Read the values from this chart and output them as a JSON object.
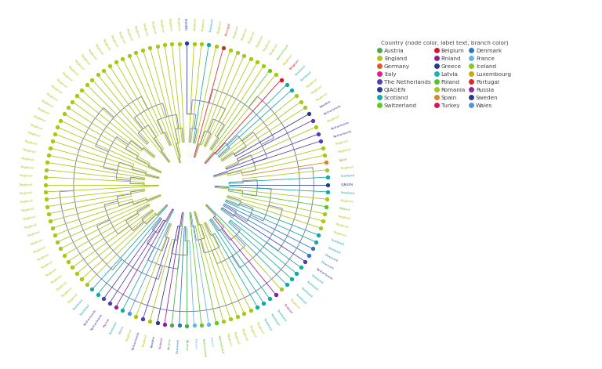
{
  "background_color": "#ffffff",
  "legend_title": "Country (node color, label text, branch color)",
  "countries": [
    {
      "name": "Austria",
      "color": "#4aaa50"
    },
    {
      "name": "England",
      "color": "#aac814"
    },
    {
      "name": "Germany",
      "color": "#e05a1e"
    },
    {
      "name": "Italy",
      "color": "#e01e8c"
    },
    {
      "name": "The Netherlands",
      "color": "#5040b0"
    },
    {
      "name": "QIAGEN",
      "color": "#283c96"
    },
    {
      "name": "Scotland",
      "color": "#14aaa0"
    },
    {
      "name": "Switzerland",
      "color": "#64c820"
    },
    {
      "name": "Belgium",
      "color": "#dc1428"
    },
    {
      "name": "Finland",
      "color": "#8c1ea0"
    },
    {
      "name": "Greece",
      "color": "#283c8c"
    },
    {
      "name": "Latvia",
      "color": "#14b4c8"
    },
    {
      "name": "Poland",
      "color": "#50c828"
    },
    {
      "name": "Romania",
      "color": "#a0c828"
    },
    {
      "name": "Spain",
      "color": "#e08228"
    },
    {
      "name": "Turkey",
      "color": "#dc1450"
    },
    {
      "name": "Denmark",
      "color": "#2878c8"
    },
    {
      "name": "France",
      "color": "#64b4e6"
    },
    {
      "name": "Iceland",
      "color": "#82c828"
    },
    {
      "name": "Luxembourg",
      "color": "#c8aa00"
    },
    {
      "name": "Portugal",
      "color": "#dc2828"
    },
    {
      "name": "Russia",
      "color": "#8c28a0"
    },
    {
      "name": "Sweden",
      "color": "#283c82"
    },
    {
      "name": "Wales",
      "color": "#5096dc"
    }
  ],
  "color_map": {
    "Austria": "#4aaa50",
    "England": "#aac814",
    "Germany": "#e05a1e",
    "Italy": "#e01e8c",
    "The Netherlands": "#5040b0",
    "QIAGEN": "#283c96",
    "Scotland": "#14aaa0",
    "Switzerland": "#64c820",
    "Belgium": "#dc1428",
    "Finland": "#8c1ea0",
    "Greece": "#283c8c",
    "Latvia": "#14b4c8",
    "Poland": "#50c828",
    "Romania": "#a0c828",
    "Spain": "#e08228",
    "Turkey": "#dc1450",
    "Denmark": "#2878c8",
    "France": "#64b4e6",
    "Iceland": "#82c828",
    "Luxembourg": "#c8aa00",
    "Portugal": "#dc2828",
    "Russia": "#8c28a0",
    "Sweden": "#283c82",
    "Wales": "#5096dc"
  },
  "tree_color": "#7878a8",
  "leaf_labels": [
    "QIAGEN",
    "England",
    "England",
    "Scotland",
    "England",
    "Portugal",
    "England",
    "England",
    "England",
    "England",
    "England",
    "England",
    "Switzerland",
    "England",
    "Belgium",
    "Scotland",
    "Scotland",
    "England",
    "England",
    "England",
    "Sweden",
    "Netherlands",
    "England",
    "Netherlands",
    "Netherlands",
    "England",
    "England",
    "Spain",
    "England",
    "Scotland",
    "QIAGEN",
    "Scotland",
    "England",
    "Poland",
    "England",
    "England",
    "England",
    "Scotland",
    "Scotland",
    "Denmark",
    "Denmark",
    "Netherlands",
    "Scotland",
    "Scotland",
    "Scotland",
    "Scotland",
    "England",
    "Finland",
    "Scotland",
    "Scotland",
    "Scotland",
    "England",
    "England",
    "England",
    "England",
    "England",
    "Switzerland",
    "France",
    "Switzerland",
    "France",
    "Austria",
    "Denmark",
    "Austria",
    "Finland",
    "Sweden",
    "England",
    "Netherlands",
    "England",
    "Wales",
    "Scotland",
    "Russia",
    "Netherlands",
    "Netherlands",
    "Scotland",
    "Scotland",
    "England",
    "England",
    "England",
    "England",
    "England",
    "England",
    "England",
    "England",
    "England",
    "England",
    "England",
    "England",
    "England",
    "England",
    "England",
    "England",
    "England",
    "England",
    "England",
    "England",
    "England",
    "England",
    "England",
    "England",
    "England",
    "England",
    "England",
    "England",
    "England",
    "England",
    "England",
    "England",
    "England",
    "England",
    "England",
    "England",
    "England",
    "England",
    "England",
    "England",
    "England",
    "England",
    "England",
    "England",
    "England",
    "England",
    "England",
    "England"
  ],
  "leaf_countries": [
    "QIAGEN",
    "England",
    "England",
    "Scotland",
    "England",
    "Portugal",
    "England",
    "England",
    "England",
    "England",
    "England",
    "England",
    "Switzerland",
    "England",
    "Belgium",
    "Scotland",
    "Scotland",
    "England",
    "England",
    "England",
    "Sweden",
    "The Netherlands",
    "England",
    "The Netherlands",
    "The Netherlands",
    "England",
    "England",
    "Spain",
    "England",
    "Scotland",
    "QIAGEN",
    "Scotland",
    "England",
    "Poland",
    "England",
    "England",
    "England",
    "Scotland",
    "Scotland",
    "Denmark",
    "Denmark",
    "The Netherlands",
    "Scotland",
    "Scotland",
    "Scotland",
    "Scotland",
    "England",
    "Finland",
    "Scotland",
    "Scotland",
    "Scotland",
    "England",
    "England",
    "England",
    "England",
    "England",
    "Switzerland",
    "France",
    "Switzerland",
    "France",
    "Austria",
    "Denmark",
    "Austria",
    "Finland",
    "Sweden",
    "England",
    "The Netherlands",
    "England",
    "Wales",
    "Scotland",
    "Russia",
    "The Netherlands",
    "The Netherlands",
    "Scotland",
    "Scotland",
    "England",
    "England",
    "England",
    "England",
    "England",
    "England",
    "England",
    "England",
    "England",
    "England",
    "England",
    "England",
    "England",
    "England",
    "England",
    "England",
    "England",
    "England",
    "England",
    "England",
    "England",
    "England",
    "England",
    "England",
    "England",
    "England",
    "England",
    "England",
    "England",
    "England",
    "England",
    "England",
    "England",
    "England",
    "England",
    "England",
    "England",
    "England",
    "England",
    "England",
    "England",
    "England",
    "England",
    "England",
    "England",
    "England",
    "England",
    "England"
  ]
}
